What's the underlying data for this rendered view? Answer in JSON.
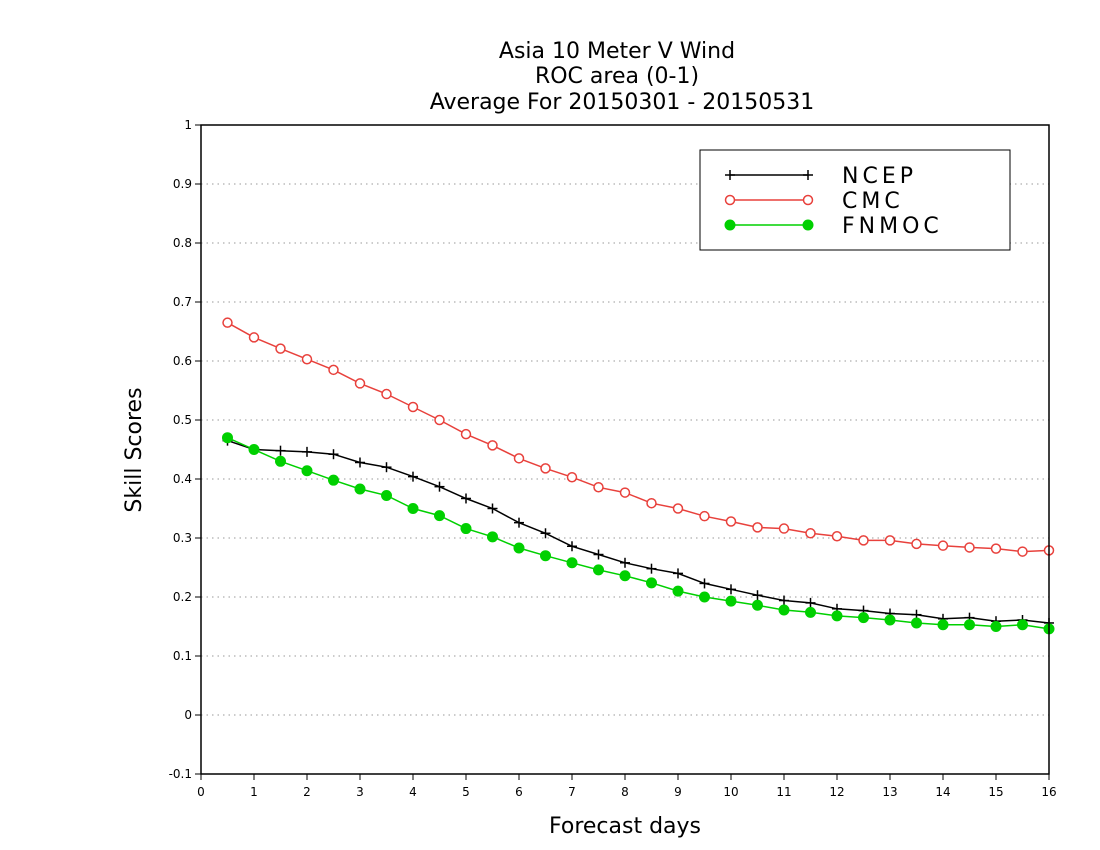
{
  "chart_data": {
    "type": "line",
    "title": [
      "Asia 10 Meter V Wind",
      "ROC area (0-1)",
      "Average For 20150301 - 20150531"
    ],
    "xlabel": "Forecast days",
    "ylabel": "Skill Scores",
    "xlim": [
      0,
      16
    ],
    "ylim": [
      -0.1,
      1
    ],
    "xticks": [
      0,
      1,
      2,
      3,
      4,
      5,
      6,
      7,
      8,
      9,
      10,
      11,
      12,
      13,
      14,
      15,
      16
    ],
    "xtick_labels": [
      "0",
      "1",
      "2",
      "3",
      "4",
      "5",
      "6",
      "7",
      "8",
      "9",
      "10",
      "11",
      "12",
      "13",
      "14",
      "15",
      "16"
    ],
    "yticks": [
      -0.1,
      0,
      0.1,
      0.2,
      0.3,
      0.4,
      0.5,
      0.6,
      0.7,
      0.8,
      0.9,
      1
    ],
    "ytick_labels": [
      "-0.1",
      "0",
      "0.1",
      "0.2",
      "0.3",
      "0.4",
      "0.5",
      "0.6",
      "0.7",
      "0.8",
      "0.9",
      "1"
    ],
    "grid": "horizontal dotted",
    "legend_position": "top-right",
    "x": [
      0.5,
      1,
      1.5,
      2,
      2.5,
      3,
      3.5,
      4,
      4.5,
      5,
      5.5,
      6,
      6.5,
      7,
      7.5,
      8,
      8.5,
      9,
      9.5,
      10,
      10.5,
      11,
      11.5,
      12,
      12.5,
      13,
      13.5,
      14,
      14.5,
      15,
      15.5,
      16
    ],
    "series": [
      {
        "name": "NCEP",
        "color": "#000000",
        "marker": "plus",
        "values": [
          0.465,
          0.45,
          0.448,
          0.446,
          0.442,
          0.428,
          0.42,
          0.404,
          0.387,
          0.367,
          0.35,
          0.326,
          0.308,
          0.286,
          0.272,
          0.258,
          0.248,
          0.24,
          0.223,
          0.213,
          0.203,
          0.194,
          0.19,
          0.18,
          0.177,
          0.172,
          0.17,
          0.163,
          0.165,
          0.159,
          0.161,
          0.156
        ]
      },
      {
        "name": "CMC",
        "color": "#e8413c",
        "marker": "open-circle",
        "values": [
          0.665,
          0.64,
          0.621,
          0.603,
          0.585,
          0.562,
          0.544,
          0.522,
          0.5,
          0.476,
          0.457,
          0.435,
          0.418,
          0.403,
          0.386,
          0.377,
          0.359,
          0.35,
          0.337,
          0.328,
          0.318,
          0.316,
          0.308,
          0.303,
          0.296,
          0.296,
          0.29,
          0.287,
          0.284,
          0.282,
          0.277,
          0.279
        ]
      },
      {
        "name": "FNMOC",
        "color": "#00d000",
        "marker": "filled-circle",
        "values": [
          0.47,
          0.45,
          0.43,
          0.414,
          0.398,
          0.383,
          0.372,
          0.35,
          0.338,
          0.316,
          0.302,
          0.283,
          0.27,
          0.258,
          0.246,
          0.236,
          0.224,
          0.21,
          0.2,
          0.193,
          0.186,
          0.178,
          0.174,
          0.168,
          0.165,
          0.161,
          0.156,
          0.153,
          0.153,
          0.15,
          0.153,
          0.146
        ]
      }
    ]
  }
}
